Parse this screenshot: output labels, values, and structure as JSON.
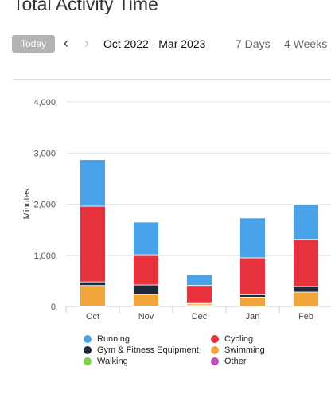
{
  "header": {
    "title": "Total Activity Time",
    "today_label": "Today",
    "date_range": "Oct 2022 - Mar 2023",
    "periods": [
      "7 Days",
      "4 Weeks"
    ]
  },
  "legend": [
    {
      "label": "Running",
      "color": "#4aa3e8"
    },
    {
      "label": "Cycling",
      "color": "#e8333f"
    },
    {
      "label": "Gym & Fitness Equipment",
      "color": "#1c2a3a"
    },
    {
      "label": "Swimming",
      "color": "#f0a43a"
    },
    {
      "label": "Walking",
      "color": "#7bd34a"
    },
    {
      "label": "Other",
      "color": "#c04bbd"
    }
  ],
  "chart_data": {
    "type": "bar",
    "stacked": true,
    "categories": [
      "Oct",
      "Nov",
      "Dec",
      "Jan",
      "Feb"
    ],
    "ylabel": "Minutes",
    "ylim": [
      0,
      4000
    ],
    "yticks": [
      0,
      1000,
      2000,
      3000,
      4000
    ],
    "ytick_labels": [
      "0",
      "1,000",
      "2,000",
      "3,000",
      "4,000"
    ],
    "grid": true,
    "legend_position": "bottom",
    "series": [
      {
        "name": "Walking",
        "color": "#7bd34a",
        "values": [
          10,
          10,
          20,
          0,
          0
        ]
      },
      {
        "name": "Swimming",
        "color": "#f0a43a",
        "values": [
          400,
          230,
          30,
          180,
          280
        ]
      },
      {
        "name": "Gym & Fitness Equipment",
        "color": "#1c2a3a",
        "values": [
          70,
          180,
          10,
          60,
          110
        ]
      },
      {
        "name": "Cycling",
        "color": "#e8333f",
        "values": [
          1480,
          590,
          350,
          710,
          920
        ]
      },
      {
        "name": "Running",
        "color": "#4aa3e8",
        "values": [
          910,
          640,
          210,
          780,
          690
        ]
      },
      {
        "name": "Other",
        "color": "#c04bbd",
        "values": [
          0,
          0,
          0,
          0,
          0
        ]
      }
    ]
  }
}
